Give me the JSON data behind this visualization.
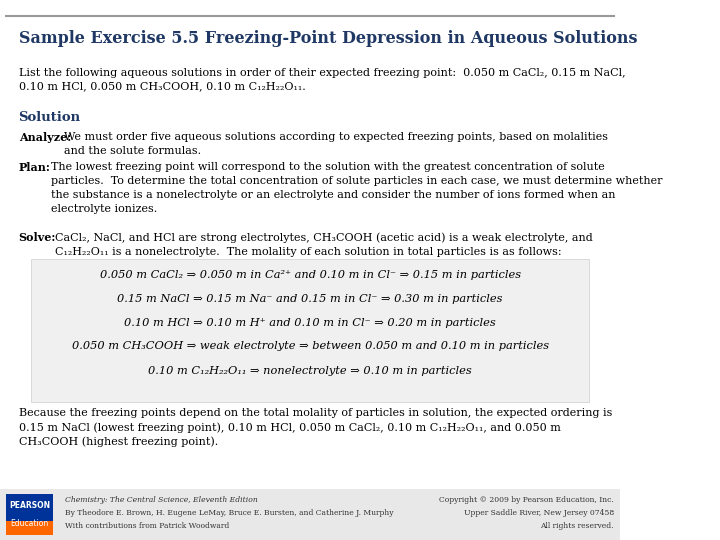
{
  "title": "Sample Exercise 5.5 Freezing-Point Depression in Aqueous Solutions",
  "title_color": "#1F3864",
  "title_fontsize": 11.5,
  "bg_color": "#FFFFFF",
  "header_line_color": "#999999",
  "body_text_color": "#000000",
  "body_fontsize": 8.5,
  "equation_box_color": "#F0F0F0",
  "footer_bg_color": "#E8E8E8",
  "pearson_blue": "#003399",
  "pearson_orange": "#FF6600",
  "intro_text": "List the following aqueous solutions in order of their expected freezing point:  0.050 m CaCl₂, 0.15 m NaCl,\n0.10 m HCl, 0.050 m CH₃COOH, 0.10 m C₁₂H₂₂O₁₁.",
  "solution_label": "Solution",
  "analyze_text": "Analyze:  We must order five aqueous solutions according to expected freezing points, based on molalities\nand the solute formulas.",
  "plan_text": "Plan:  The lowest freezing point will correspond to the solution with the greatest concentration of solute\nparticles.  To determine the total concentration of solute particles in each case, we must determine whether\nthe substance is a nonelectrolyte or an electrolyte and consider the number of ions formed when an\nelectrolyte ionizes.",
  "solve_text": "Solve:  CaCl₂, NaCl, and HCl are strong electrolytes, CH₃COOH (acetic acid) is a weak electrolyte, and\nC₁₂H₂₂O₁₁ is a nonelectrolyte.  The molality of each solution in total particles is as follows:",
  "eq1": "0.050 m CaCl₂ ⇒ 0.050 m in Ca²⁺ and 0.10 m in Cl⁻ ⇒ 0.15 m in particles",
  "eq2": "0.15 m NaCl ⇒ 0.15 m Na⁻ and 0.15 m in Cl⁻ ⇒ 0.30 m in particles",
  "eq3": "0.10 m HCl ⇒ 0.10 m H⁺ and 0.10 m in Cl⁻ ⇒ 0.20 m in particles",
  "eq4": "0.050 m CH₃COOH ⇒ weak electrolyte ⇒ between 0.050 m and 0.10 m in particles",
  "eq5": "0.10 m C₁₂H₂₂O₁₁ ⇒ nonelectrolyte ⇒ 0.10 m in particles",
  "conclude_text": "Because the freezing points depend on the total molality of particles in solution, the expected ordering is\n0.15 m NaCl (lowest freezing point), 0.10 m HCl, 0.050 m CaCl₂, 0.10 m C₁₂H₂₂O₁₁, and 0.050 m\nCH₃COOH (highest freezing point).",
  "footer_left_line1": "Chemistry: The Central Science, Eleventh Edition",
  "footer_left_line2": "By Theodore E. Brown, H. Eugene LeMay, Bruce E. Bursten, and Catherine J. Murphy",
  "footer_left_line3": "With contributions from Patrick Woodward",
  "footer_right_line1": "Copyright © 2009 by Pearson Education, Inc.",
  "footer_right_line2": "Upper Saddle River, New Jersey 07458",
  "footer_right_line3": "All rights reserved."
}
